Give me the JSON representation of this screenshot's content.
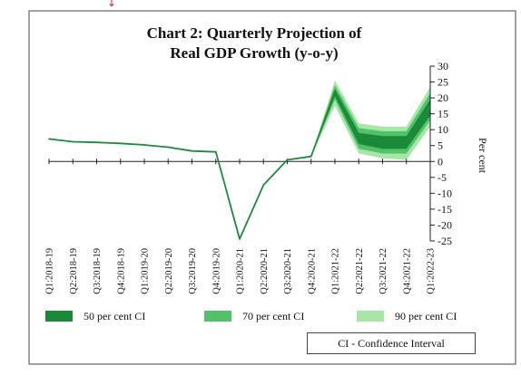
{
  "chart_data": {
    "type": "line",
    "title": "Chart 2: Quarterly Projection of",
    "subtitle": "Real GDP Growth (y-o-y)",
    "ylabel": "Per cent",
    "ylim": [
      -25,
      30
    ],
    "yticks": [
      30,
      25,
      20,
      15,
      10,
      5,
      0,
      -5,
      -10,
      -15,
      -20,
      -25
    ],
    "categories": [
      "Q1:2018-19",
      "Q2:2018-19",
      "Q3:2018-19",
      "Q4:2018-19",
      "Q1:2019-20",
      "Q2:2019-20",
      "Q3:2019-20",
      "Q4:2019-20",
      "Q1:2020-21",
      "Q2:2020-21",
      "Q3:2020-21",
      "Q4:2020-21",
      "Q1:2021-22",
      "Q2:2021-22",
      "Q3:2021-22",
      "Q4:2021-22",
      "Q1:2022-23"
    ],
    "series": [
      {
        "values": [
          7.1,
          6.2,
          6.0,
          5.7,
          5.2,
          4.5,
          3.3,
          3.0,
          -24.4,
          -7.4,
          0.5,
          1.6,
          22.0,
          7.5,
          6.5,
          6.0,
          17.0
        ]
      }
    ],
    "bands": [
      {
        "name": "90 per cent CI",
        "color": "#a8e6a8",
        "upper": [
          1.6,
          25.5,
          12.0,
          11.0,
          11.0,
          23.5
        ],
        "lower": [
          1.6,
          17.5,
          2.5,
          1.0,
          0.5,
          11.0
        ]
      },
      {
        "name": "70 per cent CI",
        "color": "#4fc26a",
        "upper": [
          1.6,
          24.0,
          10.5,
          9.5,
          9.5,
          21.5
        ],
        "lower": [
          1.6,
          19.5,
          4.0,
          2.5,
          2.5,
          13.0
        ]
      },
      {
        "name": "50 per cent CI",
        "color": "#1a8a3a",
        "upper": [
          1.6,
          22.8,
          9.0,
          8.0,
          8.0,
          19.5
        ],
        "lower": [
          1.6,
          20.5,
          5.5,
          4.0,
          4.0,
          14.5
        ]
      }
    ],
    "band_start_index": 11,
    "legend_position": "bottom"
  },
  "legend": {
    "items": [
      {
        "label": "50 per cent CI",
        "color": "#1a8a3a"
      },
      {
        "label": "70 per cent CI",
        "color": "#4fc26a"
      },
      {
        "label": "90 per cent CI",
        "color": "#a8e6a8"
      }
    ],
    "note": "CI - Confidence Interval"
  },
  "line_color": "#1f8a3a"
}
